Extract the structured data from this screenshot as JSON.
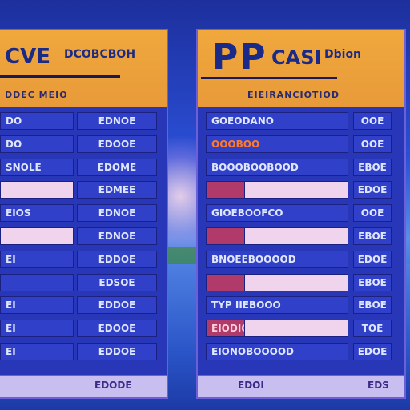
{
  "left": {
    "header": {
      "code": "CVE",
      "detail": "DCOBCBOH"
    },
    "subheader": "DDEC MEIO",
    "rows": [
      {
        "name": "DO",
        "value": "EDNOE"
      },
      {
        "name": "DO",
        "value": "EDOOE"
      },
      {
        "name": "SNOLE",
        "value": "EDOME"
      },
      {
        "name": "",
        "value": "EDMEE"
      },
      {
        "name": "EIOS",
        "value": "EDNOE"
      },
      {
        "name": "",
        "value": "EDNOE"
      },
      {
        "name": "EI",
        "value": "EDDOE"
      },
      {
        "name": "",
        "value": "EDSOE"
      },
      {
        "name": "EI",
        "value": "EDDOE"
      },
      {
        "name": "EI",
        "value": "EDOOE"
      },
      {
        "name": "EI",
        "value": "EDDOE"
      }
    ],
    "footer": "EDODE"
  },
  "right": {
    "header": {
      "code": "PP",
      "title": "CASI",
      "detail": "Dbion"
    },
    "subheader": "EIEIRANCIOTIOD",
    "rows": [
      {
        "name": "GOEODANO",
        "value": "OOE"
      },
      {
        "name": "OOOBOO",
        "value": "OOE"
      },
      {
        "name": "BOOOBOOBOOD",
        "value": "EBOE"
      },
      {
        "name": "",
        "value": "EDOE"
      },
      {
        "name": "GIOEBOOFCO",
        "value": "OOE"
      },
      {
        "name": "",
        "value": "EBOE"
      },
      {
        "name": "BNOEEBOOOOD",
        "value": "EDOE"
      },
      {
        "name": "",
        "value": "EBOE"
      },
      {
        "name": "TYP IIEBOOO",
        "value": "EBOE"
      },
      {
        "name": "EIODIOOO",
        "value": "TOE"
      },
      {
        "name": "EIONOBOOOOD",
        "value": "EDOE"
      }
    ],
    "footer": {
      "a": "EDOI",
      "b": "EDS"
    }
  }
}
